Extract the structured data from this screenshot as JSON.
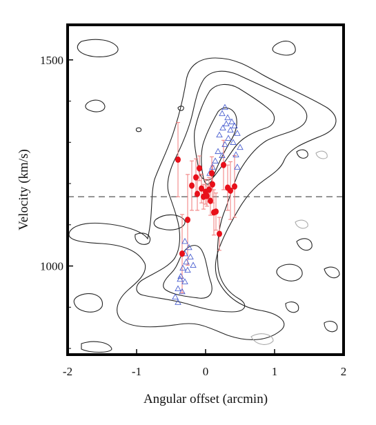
{
  "chart_data": {
    "type": "scatter",
    "xlabel": "Angular offset (arcmin)",
    "ylabel": "Velocity (km/s)",
    "xlim": [
      -2,
      2
    ],
    "ylim": [
      785,
      1585
    ],
    "x_ticks": [
      -2,
      -1,
      0,
      1,
      2
    ],
    "x_tick_labels": [
      "-2",
      "-1",
      "0",
      "1",
      "2"
    ],
    "y_ticks": [
      1000,
      1500
    ],
    "y_tick_labels": [
      "1000",
      "1500"
    ],
    "reference_line": {
      "y": 1168,
      "style": "dashed"
    },
    "colors": {
      "points": "#e8101a",
      "error_bars": "#f07878",
      "triangles": "#4a5fd0",
      "contours": "#222222"
    },
    "series": [
      {
        "marker": "filled-circle",
        "points": [
          {
            "x": -0.4,
            "y": 1258,
            "err": 90
          },
          {
            "x": -0.34,
            "y": 1030,
            "err": 95
          },
          {
            "x": -0.26,
            "y": 1112,
            "err": 110
          },
          {
            "x": -0.2,
            "y": 1195,
            "err": 60
          },
          {
            "x": -0.14,
            "y": 1215,
            "err": 45
          },
          {
            "x": -0.12,
            "y": 1175,
            "err": 40
          },
          {
            "x": -0.09,
            "y": 1237,
            "err": 30
          },
          {
            "x": -0.06,
            "y": 1188,
            "err": 35
          },
          {
            "x": -0.03,
            "y": 1168,
            "err": 30
          },
          {
            "x": 0.0,
            "y": 1180,
            "err": 30
          },
          {
            "x": 0.02,
            "y": 1170,
            "err": 25
          },
          {
            "x": 0.05,
            "y": 1185,
            "err": 30
          },
          {
            "x": 0.07,
            "y": 1158,
            "err": 35
          },
          {
            "x": 0.09,
            "y": 1225,
            "err": 40
          },
          {
            "x": 0.1,
            "y": 1198,
            "err": 45
          },
          {
            "x": 0.12,
            "y": 1130,
            "err": 55
          },
          {
            "x": 0.15,
            "y": 1132,
            "err": 45
          },
          {
            "x": 0.2,
            "y": 1078,
            "err": 40
          },
          {
            "x": 0.26,
            "y": 1245,
            "err": 60
          },
          {
            "x": 0.32,
            "y": 1190,
            "err": 55
          },
          {
            "x": 0.36,
            "y": 1183,
            "err": 70
          },
          {
            "x": 0.42,
            "y": 1193,
            "err": 75
          }
        ]
      },
      {
        "marker": "open-triangle",
        "points": [
          {
            "x": 0.24,
            "y": 1370
          },
          {
            "x": 0.28,
            "y": 1385
          },
          {
            "x": 0.32,
            "y": 1360
          },
          {
            "x": 0.38,
            "y": 1350
          },
          {
            "x": 0.3,
            "y": 1345
          },
          {
            "x": 0.42,
            "y": 1340
          },
          {
            "x": 0.36,
            "y": 1330
          },
          {
            "x": 0.25,
            "y": 1335
          },
          {
            "x": 0.46,
            "y": 1322
          },
          {
            "x": 0.2,
            "y": 1318
          },
          {
            "x": 0.33,
            "y": 1310
          },
          {
            "x": 0.4,
            "y": 1300
          },
          {
            "x": 0.28,
            "y": 1295
          },
          {
            "x": 0.5,
            "y": 1288
          },
          {
            "x": 0.18,
            "y": 1278
          },
          {
            "x": 0.24,
            "y": 1268
          },
          {
            "x": 0.14,
            "y": 1255
          },
          {
            "x": 0.1,
            "y": 1240
          },
          {
            "x": 0.44,
            "y": 1270
          },
          {
            "x": 0.46,
            "y": 1240
          },
          {
            "x": 0.06,
            "y": 1225
          },
          {
            "x": -0.3,
            "y": 1060
          },
          {
            "x": -0.24,
            "y": 1045
          },
          {
            "x": -0.3,
            "y": 1030
          },
          {
            "x": -0.22,
            "y": 1022
          },
          {
            "x": -0.28,
            "y": 1010
          },
          {
            "x": -0.18,
            "y": 1002
          },
          {
            "x": -0.33,
            "y": 995
          },
          {
            "x": -0.26,
            "y": 990
          },
          {
            "x": -0.36,
            "y": 975
          },
          {
            "x": -0.3,
            "y": 962
          },
          {
            "x": -0.4,
            "y": 945
          },
          {
            "x": -0.34,
            "y": 938
          },
          {
            "x": -0.44,
            "y": 925
          },
          {
            "x": -0.4,
            "y": 912
          },
          {
            "x": -0.37,
            "y": 968
          }
        ]
      }
    ],
    "grid": false,
    "contour_levels": 4
  }
}
